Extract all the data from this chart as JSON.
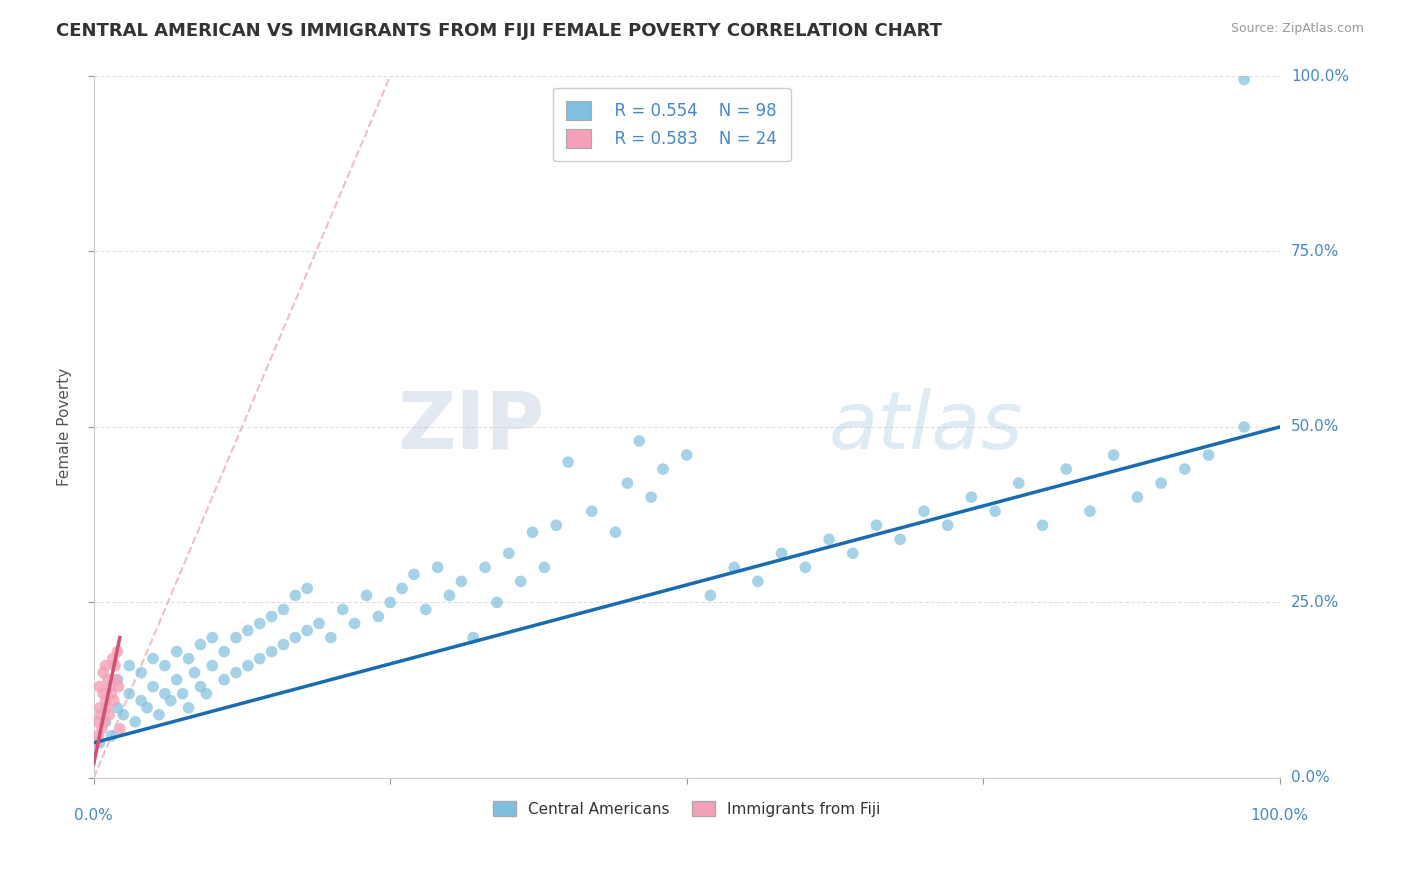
{
  "title": "CENTRAL AMERICAN VS IMMIGRANTS FROM FIJI FEMALE POVERTY CORRELATION CHART",
  "source": "Source: ZipAtlas.com",
  "xlabel": "",
  "ylabel": "Female Poverty",
  "xlim": [
    0,
    1.0
  ],
  "ylim": [
    0,
    1.0
  ],
  "ytick_labels": [
    "0.0%",
    "25.0%",
    "50.0%",
    "75.0%",
    "100.0%"
  ],
  "ytick_positions": [
    0.0,
    0.25,
    0.5,
    0.75,
    1.0
  ],
  "background_color": "#ffffff",
  "grid_color": "#d8d8d8",
  "watermark_zip": "ZIP",
  "watermark_atlas": "atlas",
  "legend_r1": "R = 0.554",
  "legend_n1": "N = 98",
  "legend_r2": "R = 0.583",
  "legend_n2": "N = 24",
  "blue_scatter_color": "#7fbfdf",
  "pink_scatter_color": "#f4a0b8",
  "blue_line_color": "#1a6bb0",
  "pink_line_color": "#d05070",
  "diag_color": "#e8b0b8",
  "tick_color": "#4488cc",
  "ca_x": [
    0.005,
    0.01,
    0.015,
    0.02,
    0.02,
    0.025,
    0.03,
    0.03,
    0.035,
    0.04,
    0.04,
    0.045,
    0.05,
    0.05,
    0.055,
    0.06,
    0.06,
    0.065,
    0.07,
    0.07,
    0.075,
    0.08,
    0.08,
    0.085,
    0.09,
    0.09,
    0.095,
    0.1,
    0.1,
    0.11,
    0.11,
    0.12,
    0.12,
    0.13,
    0.13,
    0.14,
    0.14,
    0.15,
    0.15,
    0.16,
    0.16,
    0.17,
    0.17,
    0.18,
    0.18,
    0.19,
    0.2,
    0.21,
    0.22,
    0.23,
    0.24,
    0.25,
    0.26,
    0.27,
    0.28,
    0.29,
    0.3,
    0.31,
    0.32,
    0.33,
    0.34,
    0.35,
    0.36,
    0.37,
    0.38,
    0.39,
    0.4,
    0.42,
    0.44,
    0.45,
    0.46,
    0.47,
    0.48,
    0.5,
    0.52,
    0.54,
    0.56,
    0.58,
    0.6,
    0.62,
    0.64,
    0.66,
    0.68,
    0.7,
    0.72,
    0.74,
    0.76,
    0.78,
    0.8,
    0.82,
    0.84,
    0.86,
    0.88,
    0.9,
    0.92,
    0.94,
    0.97,
    0.97
  ],
  "ca_y": [
    0.05,
    0.08,
    0.06,
    0.1,
    0.14,
    0.09,
    0.12,
    0.16,
    0.08,
    0.11,
    0.15,
    0.1,
    0.13,
    0.17,
    0.09,
    0.12,
    0.16,
    0.11,
    0.14,
    0.18,
    0.12,
    0.1,
    0.17,
    0.15,
    0.13,
    0.19,
    0.12,
    0.16,
    0.2,
    0.14,
    0.18,
    0.15,
    0.2,
    0.16,
    0.21,
    0.17,
    0.22,
    0.18,
    0.23,
    0.19,
    0.24,
    0.2,
    0.26,
    0.21,
    0.27,
    0.22,
    0.2,
    0.24,
    0.22,
    0.26,
    0.23,
    0.25,
    0.27,
    0.29,
    0.24,
    0.3,
    0.26,
    0.28,
    0.2,
    0.3,
    0.25,
    0.32,
    0.28,
    0.35,
    0.3,
    0.36,
    0.45,
    0.38,
    0.35,
    0.42,
    0.48,
    0.4,
    0.44,
    0.46,
    0.26,
    0.3,
    0.28,
    0.32,
    0.3,
    0.34,
    0.32,
    0.36,
    0.34,
    0.38,
    0.36,
    0.4,
    0.38,
    0.42,
    0.36,
    0.44,
    0.38,
    0.46,
    0.4,
    0.42,
    0.44,
    0.46,
    0.5,
    0.995
  ],
  "fiji_x": [
    0.002,
    0.003,
    0.004,
    0.005,
    0.005,
    0.006,
    0.007,
    0.008,
    0.008,
    0.009,
    0.01,
    0.01,
    0.011,
    0.012,
    0.013,
    0.014,
    0.015,
    0.016,
    0.017,
    0.018,
    0.019,
    0.02,
    0.021,
    0.022
  ],
  "fiji_y": [
    0.05,
    0.08,
    0.06,
    0.1,
    0.13,
    0.09,
    0.07,
    0.12,
    0.15,
    0.08,
    0.11,
    0.16,
    0.1,
    0.14,
    0.09,
    0.13,
    0.12,
    0.17,
    0.11,
    0.16,
    0.14,
    0.18,
    0.13,
    0.07
  ]
}
